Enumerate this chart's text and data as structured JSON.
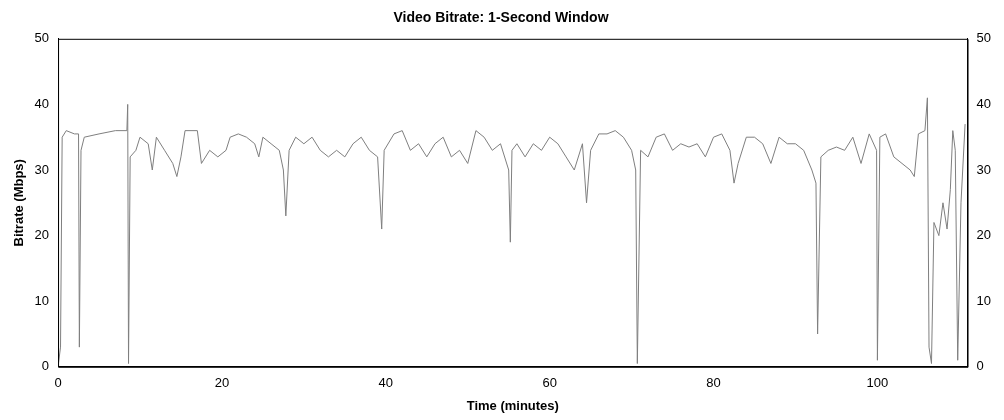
{
  "chart_data": {
    "type": "line",
    "title": "Video Bitrate: 1-Second Window",
    "xlabel": "Time (minutes)",
    "ylabel": "Bitrate (Mbps)",
    "xlim": [
      0,
      111
    ],
    "xticks": [
      0,
      20,
      40,
      60,
      80,
      100
    ],
    "ylim": [
      0,
      50
    ],
    "yticks": [
      0,
      10,
      20,
      30,
      40,
      50
    ],
    "y2lim": [
      0,
      50
    ],
    "y2ticks": [
      0,
      10,
      20,
      30,
      40,
      50
    ],
    "grid": false,
    "legend": false,
    "marker": "none",
    "line_style": "solid",
    "series": [
      {
        "color": "#7f7f7f",
        "x": [
          0,
          0.3,
          0.5,
          1,
          2,
          2.5,
          2.6,
          2.8,
          3.2,
          5,
          7,
          8.4,
          8.5,
          8.6,
          8.8,
          9.5,
          10,
          11,
          11.5,
          12,
          13,
          14,
          14.5,
          15,
          15.5,
          17,
          17.5,
          18.5,
          19.5,
          20.5,
          21,
          22,
          23,
          24,
          24.5,
          25,
          26,
          27,
          27.5,
          27.8,
          28.2,
          29,
          30,
          31,
          32,
          33,
          34,
          35,
          36,
          37,
          38,
          39,
          39.5,
          39.8,
          41,
          42,
          43,
          44,
          45,
          46,
          47,
          48,
          49,
          50,
          51,
          52,
          53,
          54,
          55,
          55.2,
          55.4,
          56,
          57,
          58,
          59,
          60,
          61,
          62,
          63,
          64,
          64.5,
          65,
          66,
          67,
          68,
          69,
          70,
          70.5,
          70.7,
          71.1,
          72,
          73,
          74,
          75,
          76,
          77,
          78,
          79,
          80,
          81,
          82,
          82.5,
          83,
          84,
          85,
          86,
          87,
          88,
          89,
          90,
          91,
          92,
          92.5,
          92.7,
          93.1,
          94,
          95,
          96,
          97,
          98,
          99,
          99.9,
          100.0,
          100.3,
          101,
          102,
          103,
          104,
          104.5,
          105,
          105.8,
          106.1,
          106.3,
          106.6,
          106.9,
          107.5,
          108,
          108.5,
          108.9,
          109.2,
          109.5,
          109.8,
          110.2,
          110.7
        ],
        "values": [
          0,
          3,
          35,
          36,
          35.5,
          35.5,
          3,
          33,
          35,
          35.5,
          36,
          36,
          40,
          0.5,
          32,
          33,
          35,
          34,
          30,
          35,
          33,
          31,
          29,
          32,
          36,
          36,
          31,
          33,
          32,
          33,
          35,
          35.5,
          35,
          34,
          32,
          35,
          34,
          33,
          30,
          23,
          33,
          35,
          34,
          35,
          33,
          32,
          33,
          32,
          34,
          35,
          33,
          32,
          21,
          33,
          35.5,
          36,
          33,
          34,
          32,
          34,
          35,
          32,
          33,
          31,
          36,
          35,
          33,
          34,
          30,
          19,
          33,
          34,
          32,
          34,
          33,
          35,
          34,
          32,
          30,
          34,
          25,
          33,
          35.5,
          35.5,
          36,
          35,
          33,
          30,
          0.5,
          33,
          32,
          35,
          35.5,
          33,
          34,
          33.5,
          34,
          32,
          35,
          35.5,
          33,
          28,
          31,
          35,
          35,
          34,
          31,
          35,
          34,
          34,
          33,
          30,
          28,
          5,
          32,
          33,
          33.5,
          33,
          35,
          31,
          35.5,
          33,
          1,
          35,
          35.5,
          32,
          31,
          30,
          29,
          35.5,
          36,
          41,
          3,
          0.5,
          22,
          20,
          25,
          21,
          27,
          36,
          33,
          1,
          25,
          37
        ]
      }
    ]
  }
}
